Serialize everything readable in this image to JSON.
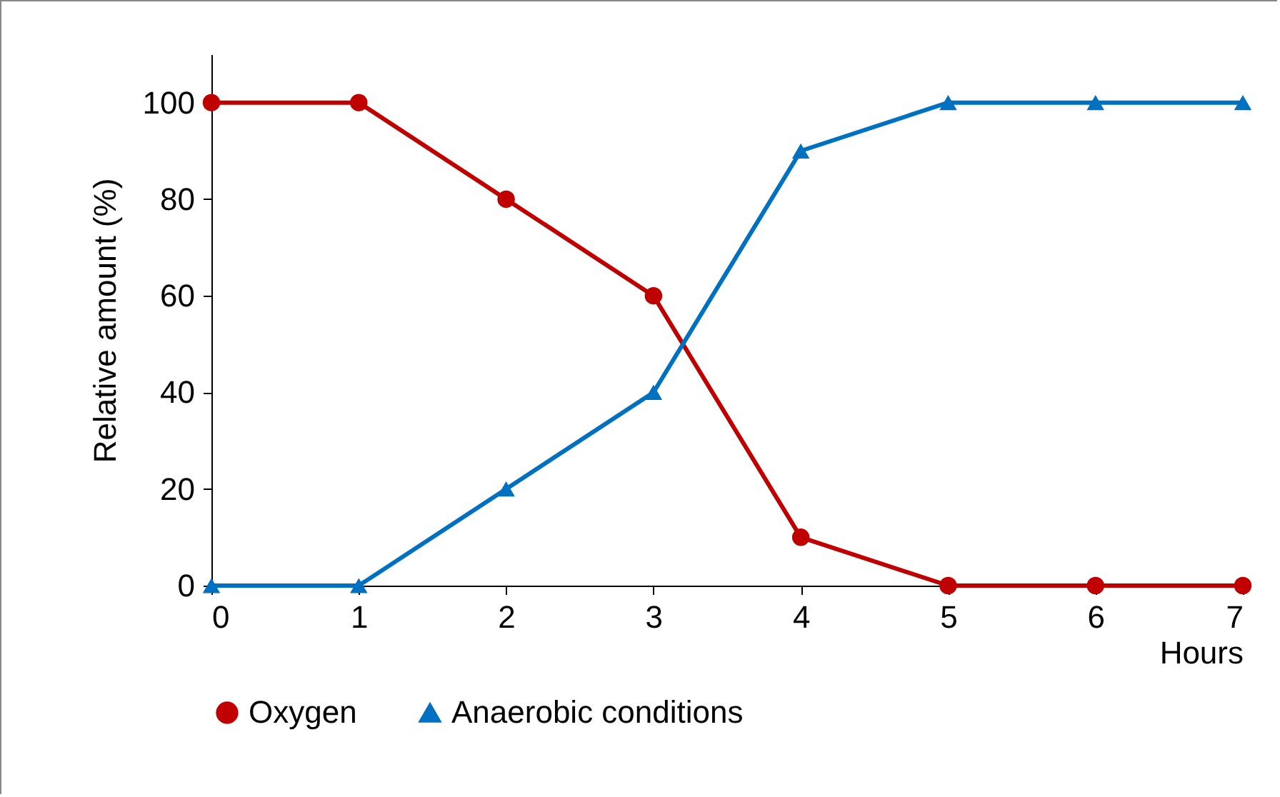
{
  "chart_data": {
    "type": "line",
    "xlabel": "Hours",
    "ylabel": "Relative amount (%)",
    "x": [
      0,
      1,
      2,
      3,
      4,
      5,
      6,
      7
    ],
    "series": [
      {
        "name": "Oxygen",
        "color": "#c00000",
        "marker": "circle",
        "values": [
          100,
          100,
          80,
          60,
          10,
          0,
          0,
          0
        ]
      },
      {
        "name": "Anaerobic conditions",
        "color": "#0070c0",
        "marker": "triangle",
        "values": [
          0,
          0,
          20,
          40,
          90,
          100,
          100,
          100
        ]
      }
    ],
    "xlim": [
      0,
      7
    ],
    "xticks": [
      0,
      1,
      2,
      3,
      4,
      5,
      6,
      7
    ],
    "ylim": [
      0,
      110
    ],
    "yticks": [
      0,
      20,
      40,
      60,
      80,
      100
    ],
    "grid": false,
    "legend": "bottom",
    "line_style": "solid"
  }
}
